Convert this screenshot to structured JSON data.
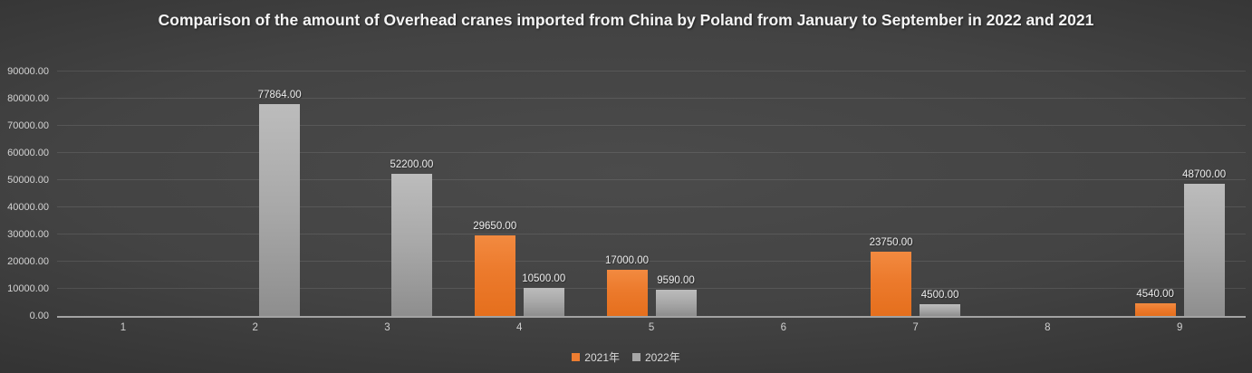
{
  "title": "Comparison of the amount of Overhead cranes imported from China by Poland from January to September in 2022 and 2021",
  "colors": {
    "background_center": "#4b4b4b",
    "background_edge": "#242424",
    "series_2021": "#ED7D31",
    "series_2022": "#A6A6A6",
    "axis_line": "#a3a3a3",
    "gridline": "rgba(255,255,255,0.10)",
    "value_label_text": "#ececec",
    "tick_label_text": "#d4d4d4",
    "title_text": "#f5f5f5"
  },
  "legend": [
    {
      "label": "2021年",
      "color": "#ED7D31"
    },
    {
      "label": "2022年",
      "color": "#A6A6A6"
    }
  ],
  "chart_data": {
    "type": "bar",
    "title": "Comparison of the amount of Overhead cranes imported from China by Poland from January to September in 2022 and 2021",
    "categories": [
      "1",
      "2",
      "3",
      "4",
      "5",
      "6",
      "7",
      "8",
      "9"
    ],
    "series": [
      {
        "name": "2021年",
        "color": "#ED7D31",
        "values": [
          null,
          null,
          null,
          29650,
          17000,
          null,
          23750,
          null,
          4540
        ]
      },
      {
        "name": "2022年",
        "color": "#A6A6A6",
        "values": [
          null,
          77864,
          52200,
          10500,
          9590,
          null,
          4500,
          null,
          48700
        ]
      }
    ],
    "xlabel": "",
    "ylabel": "",
    "ylim": [
      0,
      90000
    ],
    "yticks": [
      0,
      10000,
      20000,
      30000,
      40000,
      50000,
      60000,
      70000,
      80000,
      90000
    ],
    "ytick_format": "two-decimals",
    "value_label_format": "two-decimals",
    "grid": true,
    "legend_position": "bottom"
  }
}
